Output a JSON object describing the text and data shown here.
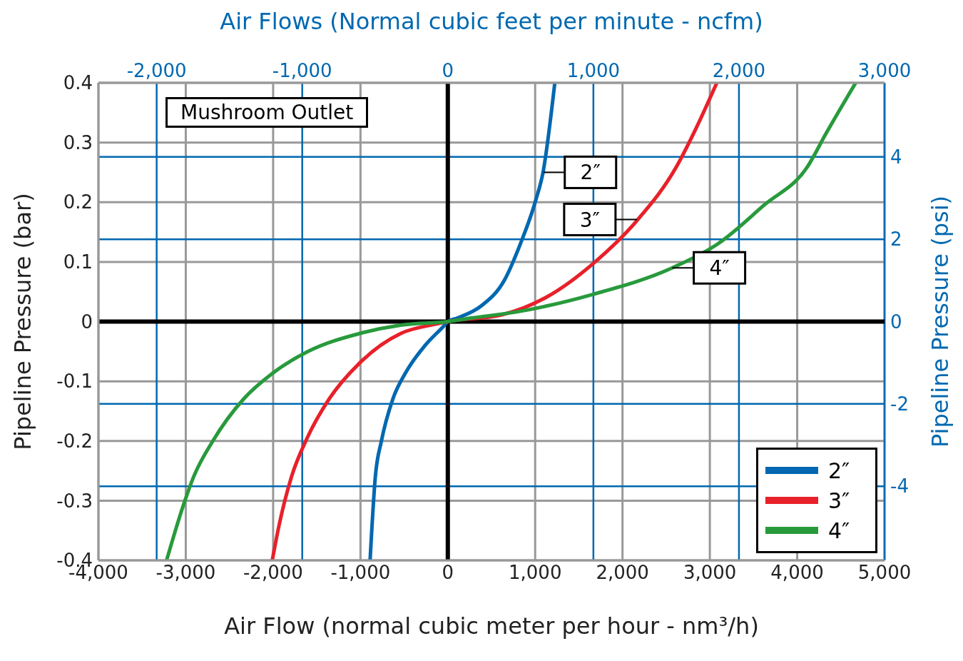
{
  "chart_data": {
    "type": "line",
    "x2label": "Air Flows (Normal cubic feet per minute - ncfm)",
    "xlabel": "Air Flow (normal cubic meter per hour - nm³/h)",
    "ylabel": "Pipeline Pressure (bar)",
    "y2label": "Pipeline Pressure (psi)",
    "series": [
      {
        "name": "2″",
        "color": "#0068b0",
        "x": [
          -890,
          -830,
          -760,
          -630,
          -480,
          -260,
          -50,
          0,
          110,
          380,
          650,
          830,
          1000,
          1090,
          1225
        ],
        "values": [
          -0.4,
          -0.26,
          -0.2,
          -0.13,
          -0.085,
          -0.04,
          -0.008,
          0,
          0.006,
          0.026,
          0.07,
          0.13,
          0.2,
          0.25,
          0.4
        ]
      },
      {
        "name": "3″",
        "color": "#e8202a",
        "x": [
          -2010,
          -1930,
          -1790,
          -1610,
          -1360,
          -1000,
          -540,
          -130,
          0,
          610,
          1130,
          1670,
          2170,
          2620,
          2830,
          3080
        ],
        "values": [
          -0.4,
          -0.34,
          -0.26,
          -0.195,
          -0.13,
          -0.068,
          -0.02,
          -0.004,
          0,
          0.011,
          0.041,
          0.098,
          0.17,
          0.26,
          0.32,
          0.4
        ]
      },
      {
        "name": "4″",
        "color": "#289a3c",
        "x": [
          -3220,
          -3010,
          -2910,
          -2690,
          -2340,
          -2010,
          -1600,
          -1010,
          -540,
          0,
          270,
          780,
          1670,
          2570,
          3090,
          3620,
          4120,
          4330,
          4670
        ],
        "values": [
          -0.4,
          -0.3,
          -0.26,
          -0.2,
          -0.13,
          -0.087,
          -0.05,
          -0.02,
          -0.006,
          0,
          0.006,
          0.016,
          0.046,
          0.09,
          0.13,
          0.195,
          0.26,
          0.315,
          0.4
        ]
      }
    ],
    "xlim": [
      -4000,
      5000
    ],
    "xticks": [
      {
        "value": -4000,
        "label": "-4,000"
      },
      {
        "value": -3000,
        "label": "-3,000"
      },
      {
        "value": -2000,
        "label": "-2,000"
      },
      {
        "value": -1000,
        "label": "-1,000"
      },
      0,
      {
        "value": 1000,
        "label": "1,000"
      },
      {
        "value": 2000,
        "label": "2,000"
      },
      {
        "value": 3000,
        "label": "3,000"
      },
      {
        "value": 4000,
        "label": "4,000"
      },
      {
        "value": 5000,
        "label": "5,000"
      }
    ],
    "x2lim": [
      -2400,
      3000
    ],
    "x2ticks": [
      {
        "value": -2000,
        "label": "-2,000"
      },
      {
        "value": -1000,
        "label": "-1,000"
      },
      0,
      {
        "value": 1000,
        "label": "1,000"
      },
      {
        "value": 2000,
        "label": "2,000"
      },
      {
        "value": 3000,
        "label": "3,000"
      }
    ],
    "ylim": [
      -0.4,
      0.4
    ],
    "yticks": [
      -0.4,
      -0.3,
      -0.2,
      -0.1,
      0,
      0.1,
      0.2,
      0.3,
      0.4
    ],
    "y2lim": [
      -5.8,
      5.8
    ],
    "y2ticks": [
      -4,
      -2,
      0,
      2,
      4
    ],
    "annotations": [
      "Mushroom Outlet",
      {
        "text": "2″",
        "x": 1094,
        "y": 0.25
      },
      {
        "text": "3″",
        "x": 2165,
        "y": 0.171
      },
      {
        "text": "4″",
        "x": 2571,
        "y": 0.09
      }
    ],
    "grid": true,
    "legend": "bottom right",
    "marker": "none",
    "line_style": "solid"
  }
}
